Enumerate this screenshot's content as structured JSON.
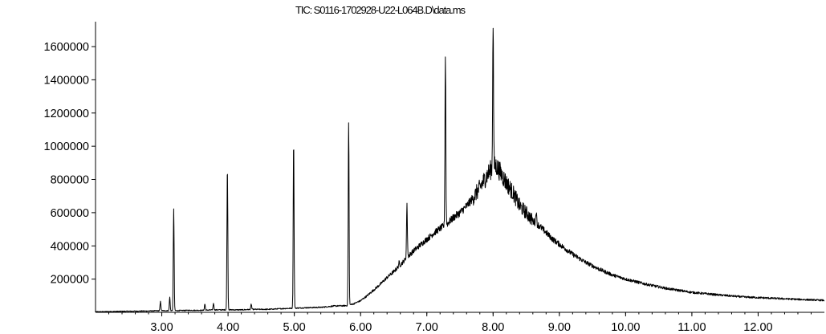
{
  "chart_data": {
    "type": "line",
    "title": "TIC: S0116-1702928-U22-L064B.D\\data.ms",
    "xlabel": "",
    "ylabel": "",
    "xlim": [
      2.0,
      13.0
    ],
    "ylim": [
      0,
      1750000
    ],
    "x_ticks": [
      "3.00",
      "4.00",
      "5.00",
      "6.00",
      "7.00",
      "8.00",
      "9.00",
      "10.00",
      "11.00",
      "12.00"
    ],
    "y_ticks": [
      "200000",
      "400000",
      "600000",
      "800000",
      "1000000",
      "1200000",
      "1400000",
      "1600000"
    ],
    "grid": false,
    "legend": "none",
    "color": "#000000",
    "series": [
      {
        "x": [
          2.0,
          2.4,
          2.8,
          3.0,
          3.2,
          3.4,
          3.6,
          3.8,
          4.0,
          4.2,
          4.4,
          4.6,
          4.8,
          5.0,
          5.2,
          5.4,
          5.6,
          5.8,
          5.9,
          6.0,
          6.1,
          6.2,
          6.3,
          6.4,
          6.5,
          6.6,
          6.7,
          6.8,
          6.9,
          7.0,
          7.1,
          7.2,
          7.3,
          7.4,
          7.5,
          7.6,
          7.7,
          7.8,
          7.9,
          8.0,
          8.05,
          8.1,
          8.2,
          8.3,
          8.4,
          8.5,
          8.6,
          8.7,
          8.8,
          8.9,
          9.0,
          9.2,
          9.4,
          9.6,
          9.8,
          10.0,
          10.3,
          10.6,
          11.0,
          11.4,
          11.8,
          12.2,
          12.6,
          13.0
        ],
        "y": [
          3000,
          6000,
          8000,
          10000,
          10000,
          12000,
          12000,
          15000,
          15000,
          15000,
          18000,
          18000,
          22000,
          25000,
          28000,
          30000,
          38000,
          40000,
          52000,
          70000,
          100000,
          135000,
          170000,
          210000,
          245000,
          285000,
          330000,
          370000,
          405000,
          440000,
          475000,
          505000,
          530000,
          570000,
          600000,
          640000,
          690000,
          750000,
          820000,
          880000,
          880000,
          850000,
          780000,
          720000,
          640000,
          600000,
          550000,
          520000,
          480000,
          440000,
          410000,
          350000,
          300000,
          260000,
          225000,
          200000,
          170000,
          145000,
          120000,
          105000,
          92000,
          85000,
          78000,
          72000
        ],
        "peaks": [
          {
            "x": 3.18,
            "y": 625000
          },
          {
            "x": 3.99,
            "y": 870000
          },
          {
            "x": 4.99,
            "y": 1025000
          },
          {
            "x": 5.82,
            "y": 1140000
          },
          {
            "x": 6.7,
            "y": 645000
          },
          {
            "x": 7.28,
            "y": 1540000
          },
          {
            "x": 8.0,
            "y": 1750000
          },
          {
            "x": 2.98,
            "y": 65000
          },
          {
            "x": 3.12,
            "y": 90000
          },
          {
            "x": 3.65,
            "y": 50000
          },
          {
            "x": 3.78,
            "y": 55000
          },
          {
            "x": 4.35,
            "y": 50000
          },
          {
            "x": 6.58,
            "y": 300000
          },
          {
            "x": 8.65,
            "y": 610000
          }
        ]
      }
    ]
  }
}
